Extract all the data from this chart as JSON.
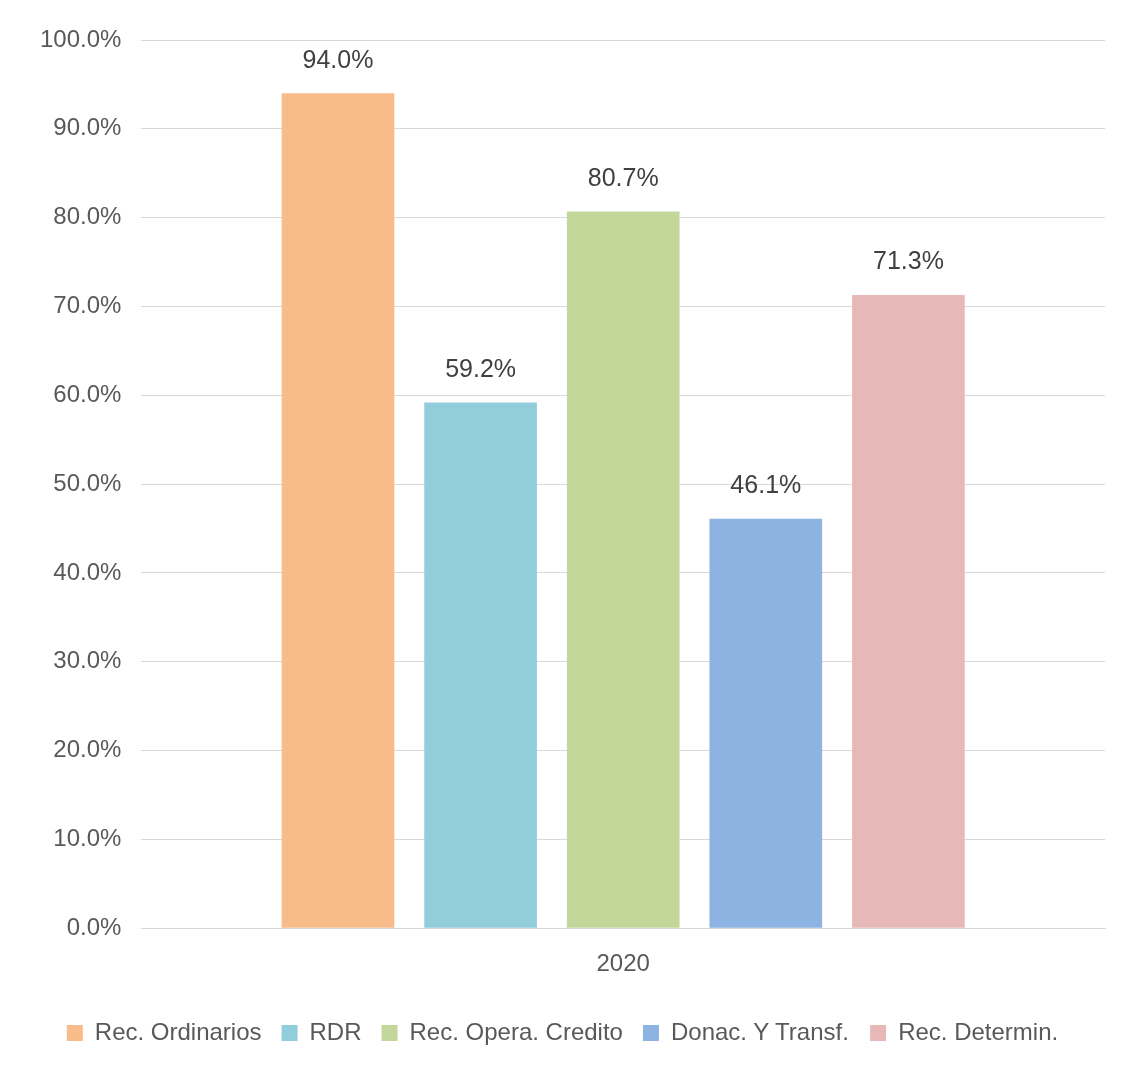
{
  "chart_data": {
    "type": "bar",
    "categories": [
      "2020"
    ],
    "series": [
      {
        "name": "Rec. Ordinarios",
        "color": "#f8bb8a",
        "values": [
          94.0
        ]
      },
      {
        "name": "RDR",
        "color": "#92cddc",
        "values": [
          59.2
        ]
      },
      {
        "name": "Rec. Opera. Credito",
        "color": "#c4d79b",
        "values": [
          80.7
        ]
      },
      {
        "name": "Donac. Y Transf.",
        "color": "#8db3e2",
        "values": [
          46.1
        ]
      },
      {
        "name": "Rec. Determin.",
        "color": "#e6b9b8",
        "values": [
          71.3
        ]
      }
    ],
    "ylim": [
      0,
      100
    ],
    "yticks": [
      {
        "value": 0,
        "label": "0.0%"
      },
      {
        "value": 10,
        "label": "10.0%"
      },
      {
        "value": 20,
        "label": "20.0%"
      },
      {
        "value": 30,
        "label": "30.0%"
      },
      {
        "value": 40,
        "label": "40.0%"
      },
      {
        "value": 50,
        "label": "50.0%"
      },
      {
        "value": 60,
        "label": "60.0%"
      },
      {
        "value": 70,
        "label": "70.0%"
      },
      {
        "value": 80,
        "label": "80.0%"
      },
      {
        "value": 90,
        "label": "90.0%"
      },
      {
        "value": 100,
        "label": "100.0%"
      }
    ],
    "value_labels": [
      "94.0%",
      "59.2%",
      "80.7%",
      "46.1%",
      "71.3%"
    ],
    "grid": "y",
    "legend": "bottom"
  }
}
